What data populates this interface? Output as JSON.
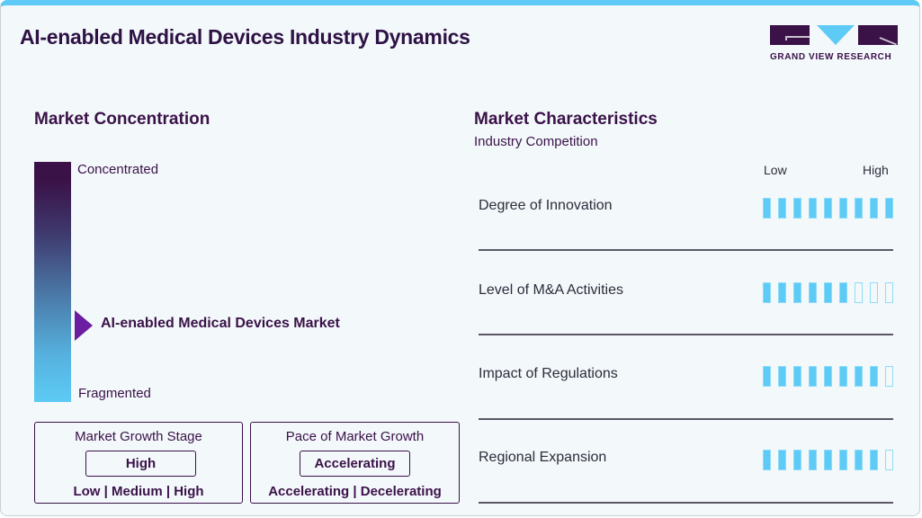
{
  "header": {
    "title": "AI-enabled Medical Devices Industry Dynamics",
    "logo_text": "GRAND VIEW RESEARCH"
  },
  "colors": {
    "accent_blue": "#5dcbf5",
    "brand_purple": "#3a1248",
    "marker_purple": "#6b1fa0",
    "background": "#f3f8fb"
  },
  "market_concentration": {
    "heading": "Market Concentration",
    "top_label": "Concentrated",
    "bottom_label": "Fragmented",
    "marker_label": "AI-enabled Medical Devices Market",
    "marker_position_pct": 69
  },
  "growth_stage": {
    "title": "Market Growth Stage",
    "value": "High",
    "options": "Low | Medium | High"
  },
  "growth_pace": {
    "title": "Pace of Market Growth",
    "value": "Accelerating",
    "options": "Accelerating | Decelerating"
  },
  "market_characteristics": {
    "heading": "Market Characteristics",
    "subheading": "Industry Competition",
    "scale_low": "Low",
    "scale_high": "High",
    "rows": [
      {
        "label": "Degree of Innovation",
        "filled": 9,
        "total": 9
      },
      {
        "label": "Level of M&A Activities",
        "filled": 6,
        "total": 9
      },
      {
        "label": "Impact of Regulations",
        "filled": 8,
        "total": 9
      },
      {
        "label": "Regional Expansion",
        "filled": 8,
        "total": 9
      }
    ]
  }
}
